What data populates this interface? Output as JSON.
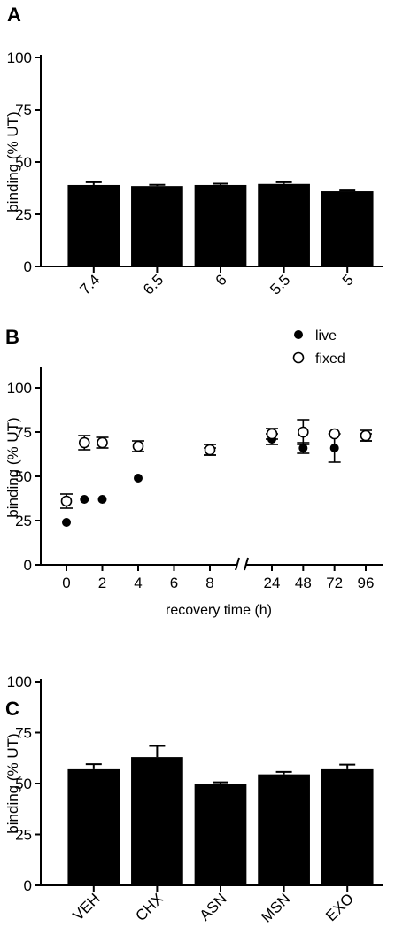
{
  "chart_data": [
    {
      "panel": "A",
      "type": "bar",
      "ylabel": "binding (% UT)",
      "xlabel": "",
      "ylim": [
        0,
        100
      ],
      "yticks": [
        0,
        25,
        50,
        75,
        100
      ],
      "categories": [
        "7.4",
        "6.5",
        "6",
        "5.5",
        "5"
      ],
      "values": [
        39,
        38.5,
        39,
        39.5,
        36
      ],
      "errors": [
        1.3,
        0.6,
        0.6,
        0.8,
        0.4
      ],
      "bar_color": "#000000",
      "grid": false
    },
    {
      "panel": "B",
      "type": "scatter",
      "ylabel": "binding (% UT)",
      "xlabel": "recovery time (h)",
      "ylim": [
        0,
        110
      ],
      "yticks": [
        0,
        25,
        50,
        75,
        100
      ],
      "x_ticks_left": [
        "0",
        "2",
        "4",
        "6",
        "8"
      ],
      "x_ticks_right": [
        "24",
        "48",
        "72",
        "96"
      ],
      "axis_break": "between 8 and 24",
      "legend_position": "top-right",
      "series": [
        {
          "name": "live",
          "marker": "filled",
          "x": [
            0,
            1,
            2,
            4,
            8,
            24,
            48,
            72,
            96
          ],
          "y": [
            24,
            37,
            37,
            49,
            64,
            71,
            66,
            66,
            72
          ],
          "err": [
            0,
            0,
            0,
            0,
            2,
            3,
            3,
            8,
            2
          ]
        },
        {
          "name": "fixed",
          "marker": "open",
          "x": [
            0,
            1,
            2,
            4,
            8,
            24,
            48,
            72,
            96
          ],
          "y": [
            36,
            69,
            69,
            67,
            65,
            74,
            75,
            74,
            73
          ],
          "err": [
            4,
            4,
            3,
            3,
            3,
            3,
            7,
            0,
            3
          ]
        }
      ],
      "grid": false
    },
    {
      "panel": "C",
      "type": "bar",
      "ylabel": "binding (% UT)",
      "xlabel": "",
      "ylim": [
        0,
        100
      ],
      "yticks": [
        0,
        25,
        50,
        75,
        100
      ],
      "categories": [
        "VEH",
        "CHX",
        "ASN",
        "MSN",
        "EXO"
      ],
      "values": [
        57,
        63,
        50,
        54.5,
        57
      ],
      "errors": [
        2.5,
        5.5,
        0.6,
        1.2,
        2.3
      ],
      "bar_color": "#000000",
      "grid": false
    }
  ]
}
